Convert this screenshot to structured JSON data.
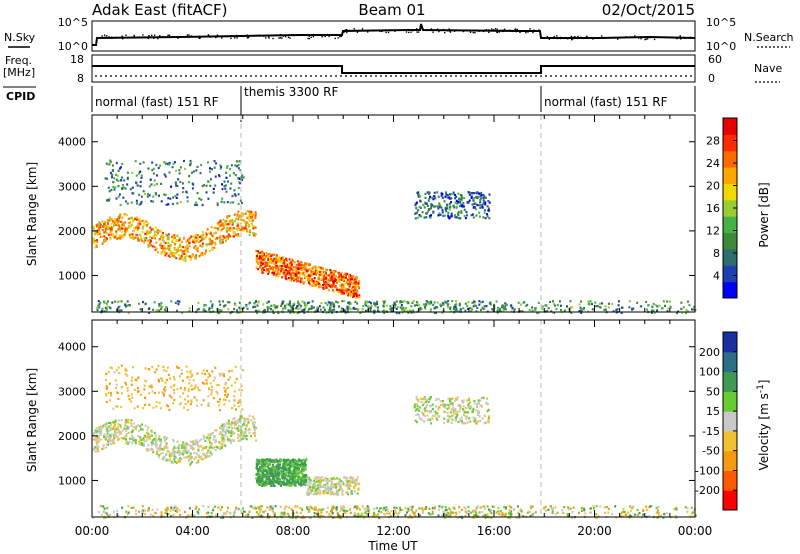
{
  "header": {
    "station": "Adak East (fitACF)",
    "beam": "Beam 01",
    "date": "02/Oct/2015"
  },
  "status_panels": {
    "nsky_label": "N.Sky",
    "nsky_ticks": [
      "10^5",
      "10^0"
    ],
    "nsearch_label": "N.Search",
    "nsearch_ticks": [
      "10^5",
      "10^0"
    ],
    "freq_label_line1": "Freq.",
    "freq_label_line2": "[MHz]",
    "freq_ticks": [
      "18",
      "8"
    ],
    "nave_label": "Nave",
    "nave_ticks": [
      "60",
      "0"
    ],
    "cpid_label": "CPID",
    "cpid_segments": [
      {
        "label": "normal (fast) 151 RF",
        "start_h": 0,
        "end_h": 6
      },
      {
        "label": "themis 3300 RF",
        "start_h": 6,
        "end_h": 18
      },
      {
        "label": "normal (fast) 151 RF",
        "start_h": 18,
        "end_h": 24
      }
    ]
  },
  "colorbars": {
    "power": {
      "label": "Power [dB]",
      "ticks": [
        "28",
        "24",
        "20",
        "16",
        "12",
        "8",
        "4"
      ],
      "colors": [
        "#0000ff",
        "#1f3fae",
        "#2e6e6e",
        "#3a8a3a",
        "#44b244",
        "#9acd32",
        "#f0d800",
        "#ffa500",
        "#ff6a00",
        "#ff2a00",
        "#e60000"
      ]
    },
    "velocity": {
      "label": "Velocity [m s",
      "label_sup": "-1",
      "label_close": "]",
      "ticks": [
        "200",
        "100",
        "50",
        "15",
        "-15",
        "-50",
        "-100",
        "-200"
      ],
      "colors": [
        "#1a2fa0",
        "#2e6e88",
        "#3e9a55",
        "#66cc33",
        "#c8c8c8",
        "#f3c032",
        "#f59a10",
        "#ff5a00",
        "#ff0000"
      ]
    }
  },
  "chart_data": [
    {
      "type": "heatmap",
      "name_ref": "power",
      "ylabel": "Slant Range [km]",
      "ylim": [
        180,
        4600
      ],
      "yticks": [
        "4000",
        "3000",
        "2000",
        "1000"
      ],
      "xlim": [
        0,
        24
      ],
      "xtick_labels": [
        "00:00",
        "04:00",
        "08:00",
        "12:00",
        "16:00",
        "20:00",
        "00:00"
      ],
      "xlabel": "Time UT",
      "echo_regions": [
        {
          "t0": 0.0,
          "t1": 6.5,
          "r_lo": 1500,
          "r_hi": 2350,
          "power_db": 22
        },
        {
          "t0": 6.5,
          "t1": 10.6,
          "r_lo": 700,
          "r_hi": 1500,
          "power_db": 26
        },
        {
          "t0": 0.5,
          "t1": 6.0,
          "r_lo": 2600,
          "r_hi": 3600,
          "power_db": 8
        },
        {
          "t0": 12.8,
          "t1": 15.8,
          "r_lo": 2300,
          "r_hi": 2900,
          "power_db": 6
        },
        {
          "t0": 0.0,
          "t1": 24.0,
          "r_lo": 180,
          "r_hi": 450,
          "power_db": 10
        }
      ]
    },
    {
      "type": "heatmap",
      "name_ref": "velocity",
      "ylabel": "Slant Range [km]",
      "ylim": [
        180,
        4600
      ],
      "yticks": [
        "4000",
        "3000",
        "2000",
        "1000"
      ],
      "xlim": [
        0,
        24
      ],
      "xtick_labels": [
        "00:00",
        "04:00",
        "08:00",
        "12:00",
        "16:00",
        "20:00",
        "00:00"
      ],
      "xlabel": "Time UT",
      "echo_regions": [
        {
          "t0": 0.0,
          "t1": 6.5,
          "r_lo": 1500,
          "r_hi": 2350,
          "velocity": 0
        },
        {
          "t0": 6.5,
          "t1": 8.5,
          "r_lo": 900,
          "r_hi": 1500,
          "velocity": 60
        },
        {
          "t0": 8.5,
          "t1": 10.6,
          "r_lo": 700,
          "r_hi": 1100,
          "velocity": 0
        },
        {
          "t0": 0.5,
          "t1": 6.0,
          "r_lo": 2600,
          "r_hi": 3600,
          "velocity": -40
        },
        {
          "t0": 12.8,
          "t1": 15.8,
          "r_lo": 2300,
          "r_hi": 2900,
          "velocity": 0
        },
        {
          "t0": 0.0,
          "t1": 24.0,
          "r_lo": 180,
          "r_hi": 450,
          "velocity": 40
        }
      ]
    }
  ]
}
